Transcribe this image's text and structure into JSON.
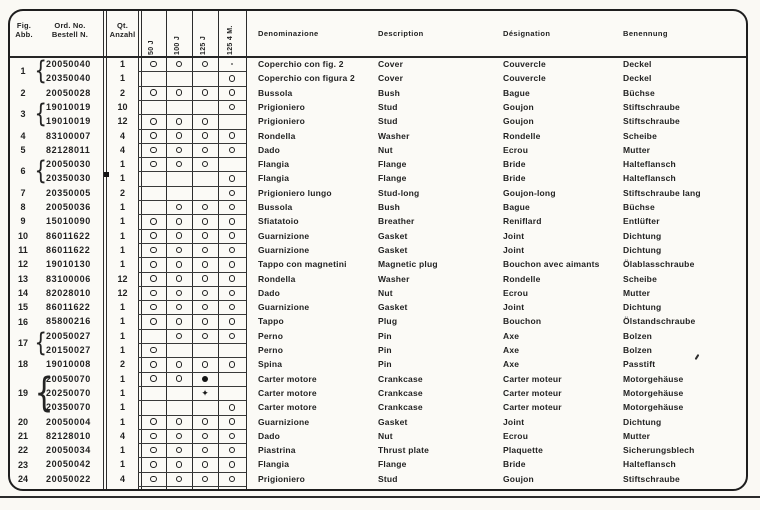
{
  "header": {
    "fig": "Fig.\nAbb.",
    "ord": "Ord. No.\nBestell N.",
    "qty": "Qt.\nAnzahl",
    "models": [
      "50 J",
      "100 J",
      "125 J",
      "125 4 M."
    ],
    "names": [
      "Denominazione",
      "Description",
      "Désignation",
      "Benennung"
    ]
  },
  "rows": [
    {
      "fig": "1",
      "span": 2,
      "ord": "20050040",
      "qty": "1",
      "marks": [
        "o",
        "o",
        "o",
        "."
      ],
      "names": [
        "Coperchio con fig. 2",
        "Cover",
        "Couvercle",
        "Deckel"
      ]
    },
    {
      "ord": "20350040",
      "qty": "1",
      "marks": [
        "",
        "",
        "",
        "o"
      ],
      "names": [
        "Coperchio con figura 2",
        "Cover",
        "Couvercle",
        "Deckel"
      ]
    },
    {
      "fig": "2",
      "ord": "20050028",
      "qty": "2",
      "marks": [
        "o",
        "o",
        "o",
        "o"
      ],
      "names": [
        "Bussola",
        "Bush",
        "Bague",
        "Büchse"
      ]
    },
    {
      "fig": "3",
      "span": 2,
      "ord": "19010019",
      "qty": "10",
      "marks": [
        "",
        "",
        "",
        "o"
      ],
      "names": [
        "Prigioniero",
        "Stud",
        "Goujon",
        "Stiftschraube"
      ]
    },
    {
      "ord": "19010019",
      "qty": "12",
      "marks": [
        "o",
        "o",
        "o",
        ""
      ],
      "names": [
        "Prigioniero",
        "Stud",
        "Goujon",
        "Stiftschraube"
      ]
    },
    {
      "fig": "4",
      "ord": "83100007",
      "qty": "4",
      "marks": [
        "o",
        "o",
        "o",
        "o"
      ],
      "names": [
        "Rondella",
        "Washer",
        "Rondelle",
        "Scheibe"
      ]
    },
    {
      "fig": "5",
      "ord": "82128011",
      "qty": "4",
      "marks": [
        "o",
        "o",
        "o",
        "o"
      ],
      "names": [
        "Dado",
        "Nut",
        "Ecrou",
        "Mutter"
      ]
    },
    {
      "fig": "6",
      "span": 2,
      "ord": "20050030",
      "qty": "1",
      "marks": [
        "o",
        "o",
        "o",
        ""
      ],
      "names": [
        "Flangia",
        "Flange",
        "Bride",
        "Halteflansch"
      ]
    },
    {
      "ord": "20350030",
      "flag": "■",
      "qty": "1",
      "marks": [
        "",
        "",
        "",
        "o"
      ],
      "names": [
        "Flangia",
        "Flange",
        "Bride",
        "Halteflansch"
      ]
    },
    {
      "fig": "7",
      "ord": "20350005",
      "qty": "2",
      "marks": [
        "",
        "",
        "",
        "o"
      ],
      "names": [
        "Prigioniero lungo",
        "Stud-long",
        "Goujon-long",
        "Stiftschraube lang"
      ]
    },
    {
      "fig": "8",
      "ord": "20050036",
      "qty": "1",
      "marks": [
        "",
        "o",
        "o",
        "o"
      ],
      "names": [
        "Bussola",
        "Bush",
        "Bague",
        "Büchse"
      ]
    },
    {
      "fig": "9",
      "ord": "15010090",
      "qty": "1",
      "marks": [
        "o",
        "o",
        "o",
        "o"
      ],
      "names": [
        "Sfiatatoio",
        "Breather",
        "Reniflard",
        "Entlüfter"
      ]
    },
    {
      "fig": "10",
      "ord": "86011622",
      "qty": "1",
      "marks": [
        "o",
        "o",
        "o",
        "o"
      ],
      "names": [
        "Guarnizione",
        "Gasket",
        "Joint",
        "Dichtung"
      ]
    },
    {
      "fig": "11",
      "ord": "86011622",
      "qty": "1",
      "marks": [
        "o",
        "o",
        "o",
        "o"
      ],
      "names": [
        "Guarnizione",
        "Gasket",
        "Joint",
        "Dichtung"
      ]
    },
    {
      "fig": "12",
      "ord": "19010130",
      "qty": "1",
      "marks": [
        "o",
        "o",
        "o",
        "o"
      ],
      "names": [
        "Tappo con magnetini",
        "Magnetic plug",
        "Bouchon avec aimants",
        "Ölablasschraube"
      ]
    },
    {
      "fig": "13",
      "ord": "83100006",
      "qty": "12",
      "marks": [
        "o",
        "o",
        "o",
        "o"
      ],
      "names": [
        "Rondella",
        "Washer",
        "Rondelle",
        "Scheibe"
      ]
    },
    {
      "fig": "14",
      "ord": "82028010",
      "qty": "12",
      "marks": [
        "o",
        "o",
        "o",
        "o"
      ],
      "names": [
        "Dado",
        "Nut",
        "Ecrou",
        "Mutter"
      ]
    },
    {
      "fig": "15",
      "ord": "86011622",
      "qty": "1",
      "marks": [
        "o",
        "o",
        "o",
        "o"
      ],
      "names": [
        "Guarnizione",
        "Gasket",
        "Joint",
        "Dichtung"
      ]
    },
    {
      "fig": "16",
      "ord": "85800216",
      "qty": "1",
      "marks": [
        "o",
        "o",
        "o",
        "o"
      ],
      "names": [
        "Tappo",
        "Plug",
        "Bouchon",
        "Ölstandschraube"
      ]
    },
    {
      "fig": "17",
      "span": 2,
      "ord": "20050027",
      "qty": "1",
      "marks": [
        "",
        "o",
        "o",
        "o"
      ],
      "names": [
        "Perno",
        "Pin",
        "Axe",
        "Bolzen"
      ]
    },
    {
      "ord": "20150027",
      "qty": "1",
      "marks": [
        "o",
        "",
        "",
        ""
      ],
      "names": [
        "Perno",
        "Pin",
        "Axe",
        "Bolzen"
      ]
    },
    {
      "fig": "18",
      "ord": "19010008",
      "qty": "2",
      "marks": [
        "o",
        "o",
        "o",
        "o"
      ],
      "names": [
        "Spina",
        "Pin",
        "Axe",
        "Passtift"
      ]
    },
    {
      "fig": "19",
      "span": 3,
      "ord": "20050070",
      "qty": "1",
      "marks": [
        "o",
        "o",
        "●",
        ""
      ],
      "names": [
        "Carter motore",
        "Crankcase",
        "Carter moteur",
        "Motorgehäuse"
      ]
    },
    {
      "ord": "20250070",
      "qty": "1",
      "marks": [
        "",
        "",
        "✦",
        ""
      ],
      "names": [
        "Carter motore",
        "Crankcase",
        "Carter moteur",
        "Motorgehäuse"
      ]
    },
    {
      "ord": "20350070",
      "qty": "1",
      "marks": [
        "",
        "",
        "",
        "o"
      ],
      "names": [
        "Carter motore",
        "Crankcase",
        "Carter moteur",
        "Motorgehäuse"
      ]
    },
    {
      "fig": "20",
      "ord": "20050004",
      "qty": "1",
      "marks": [
        "o",
        "o",
        "o",
        "o"
      ],
      "names": [
        "Guarnizione",
        "Gasket",
        "Joint",
        "Dichtung"
      ]
    },
    {
      "fig": "21",
      "ord": "82128010",
      "qty": "4",
      "marks": [
        "o",
        "o",
        "o",
        "o"
      ],
      "names": [
        "Dado",
        "Nut",
        "Ecrou",
        "Mutter"
      ]
    },
    {
      "fig": "22",
      "ord": "20050034",
      "qty": "1",
      "marks": [
        "o",
        "o",
        "o",
        "o"
      ],
      "names": [
        "Piastrina",
        "Thrust plate",
        "Plaquette",
        "Sicherungsblech"
      ]
    },
    {
      "fig": "23",
      "ord": "20050042",
      "qty": "1",
      "marks": [
        "o",
        "o",
        "o",
        "o"
      ],
      "names": [
        "Flangia",
        "Flange",
        "Bride",
        "Halteflansch"
      ]
    },
    {
      "fig": "24",
      "ord": "20050022",
      "qty": "4",
      "marks": [
        "o",
        "o",
        "o",
        "o"
      ],
      "names": [
        "Prigioniero",
        "Stud",
        "Goujon",
        "Stiftschraube"
      ]
    }
  ],
  "colors": {
    "ink": "#222222",
    "paper": "#fbfaf6",
    "line": "#2c2c2c"
  }
}
